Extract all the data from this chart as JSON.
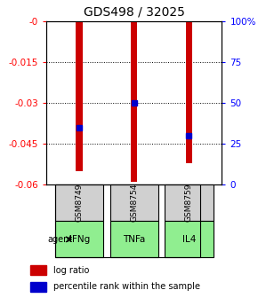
{
  "title": "GDS498 / 32025",
  "samples": [
    "GSM8749",
    "GSM8754",
    "GSM8759"
  ],
  "agents": [
    "IFNg",
    "TNFa",
    "IL4"
  ],
  "log_ratios": [
    -0.055,
    -0.059,
    -0.052
  ],
  "percentiles": [
    35,
    50,
    30
  ],
  "ylim_left": [
    -0.06,
    0
  ],
  "ylim_right": [
    0,
    100
  ],
  "yticks_left": [
    0,
    -0.015,
    -0.03,
    -0.045,
    -0.06
  ],
  "yticks_right": [
    0,
    25,
    50,
    75,
    100
  ],
  "ytick_labels_left": [
    "-0",
    "-0.015",
    "-0.03",
    "-0.045",
    "-0.06"
  ],
  "ytick_labels_right": [
    "0",
    "25",
    "50",
    "75",
    "100%"
  ],
  "bar_color": "#cc0000",
  "percentile_color": "#0000cc",
  "sample_box_color": "#d0d0d0",
  "agent_box_color": "#90ee90",
  "title_fontsize": 10,
  "legend_fontsize": 7,
  "tick_fontsize": 7.5,
  "bar_width": 0.12
}
